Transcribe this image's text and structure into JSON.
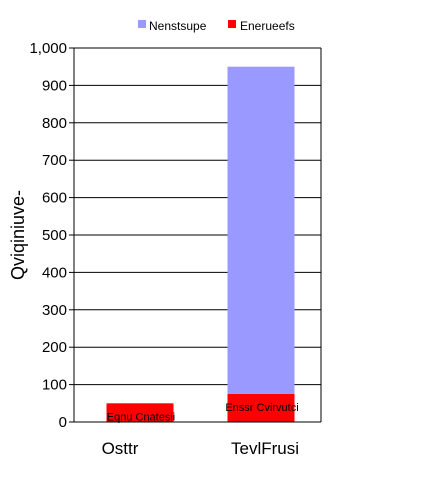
{
  "chart_data": {
    "type": "bar",
    "stacked": true,
    "categories": [
      "Osttr",
      "TevlFrusi"
    ],
    "series": [
      {
        "name": "Enerueefs",
        "values": [
          50,
          75
        ],
        "color": "#ff0000"
      },
      {
        "name": "Nenstsupe",
        "values": [
          0,
          875
        ],
        "color": "#9999ff"
      }
    ],
    "legend_order": [
      "Nenstsupe",
      "Enerueefs"
    ],
    "legend_position": "top",
    "bar_labels": [
      "Eqnu Cnatesii",
      "Enssr Cvirvutci"
    ],
    "ylabel": "Qviqiniuve-",
    "xlabel": "",
    "ylim": [
      0,
      1000
    ],
    "yticks": [
      "0",
      "100",
      "200",
      "300",
      "400",
      "500",
      "600",
      "700",
      "800",
      "900",
      "1,000"
    ],
    "grid": true
  }
}
